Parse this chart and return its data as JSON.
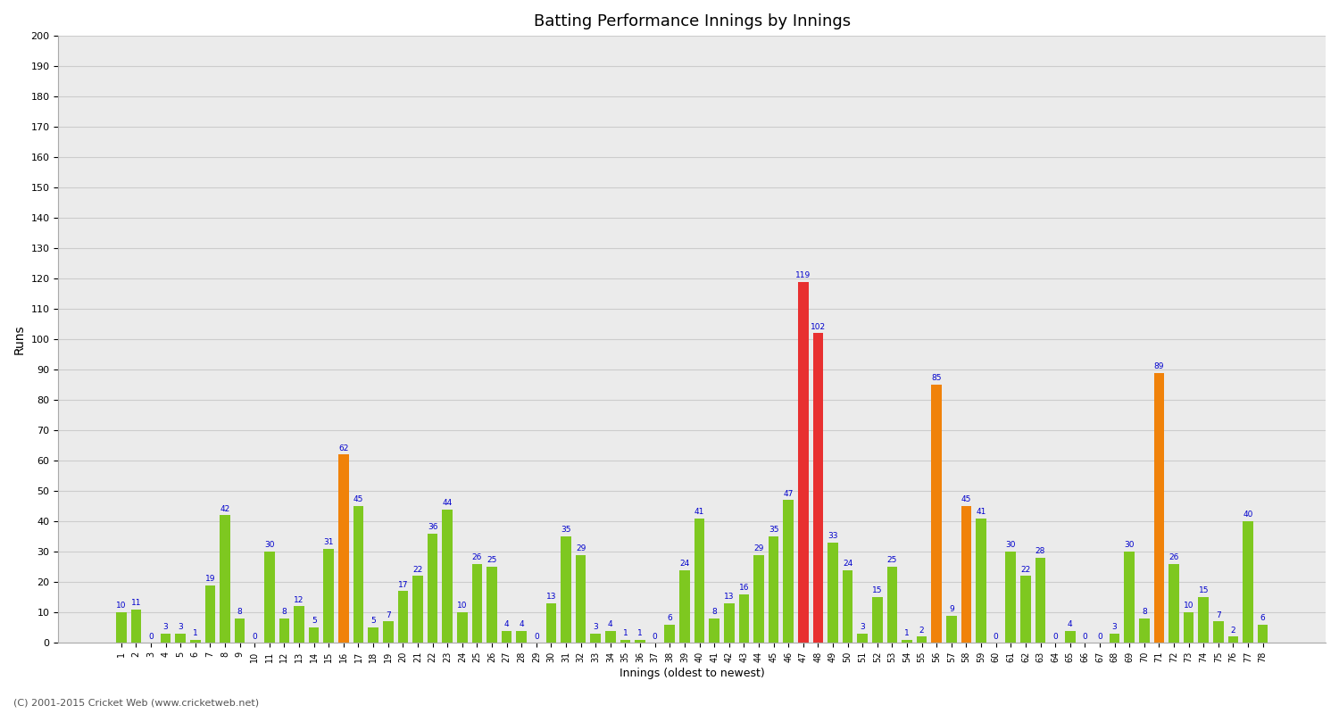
{
  "innings": [
    1,
    2,
    3,
    4,
    5,
    6,
    7,
    8,
    9,
    10,
    11,
    12,
    13,
    14,
    15,
    16,
    17,
    18,
    19,
    20,
    21,
    22,
    23,
    24,
    25,
    26,
    27,
    28,
    29,
    30,
    31,
    32,
    33,
    34,
    35,
    36,
    37,
    38,
    39,
    40,
    41,
    42,
    43,
    44,
    45,
    46,
    47,
    48,
    49,
    50,
    51,
    52,
    53,
    54,
    55,
    56,
    57,
    58,
    59,
    60,
    61,
    62,
    63,
    64,
    65,
    66,
    67,
    68,
    69,
    70,
    71,
    72,
    73,
    74,
    75,
    76,
    77,
    78
  ],
  "values": [
    10,
    11,
    0,
    3,
    3,
    1,
    19,
    42,
    8,
    0,
    30,
    8,
    12,
    5,
    31,
    62,
    45,
    5,
    7,
    17,
    22,
    36,
    44,
    10,
    26,
    25,
    4,
    4,
    0,
    13,
    35,
    29,
    3,
    4,
    1,
    1,
    0,
    6,
    24,
    41,
    8,
    13,
    16,
    29,
    35,
    47,
    119,
    102,
    33,
    24,
    3,
    15,
    25,
    1,
    2,
    85,
    9,
    45,
    41,
    0,
    30,
    22,
    28,
    0,
    4,
    0,
    0,
    3,
    30,
    8,
    89,
    26,
    10,
    15,
    7,
    2,
    40,
    6
  ],
  "colors": [
    "#7ec820",
    "#7ec820",
    "#7ec820",
    "#7ec820",
    "#7ec820",
    "#7ec820",
    "#7ec820",
    "#7ec820",
    "#7ec820",
    "#7ec820",
    "#7ec820",
    "#7ec820",
    "#7ec820",
    "#7ec820",
    "#7ec820",
    "#f0820a",
    "#7ec820",
    "#7ec820",
    "#7ec820",
    "#7ec820",
    "#7ec820",
    "#7ec820",
    "#7ec820",
    "#7ec820",
    "#7ec820",
    "#7ec820",
    "#7ec820",
    "#7ec820",
    "#7ec820",
    "#7ec820",
    "#7ec820",
    "#7ec820",
    "#7ec820",
    "#7ec820",
    "#7ec820",
    "#7ec820",
    "#7ec820",
    "#7ec820",
    "#7ec820",
    "#7ec820",
    "#7ec820",
    "#7ec820",
    "#7ec820",
    "#7ec820",
    "#7ec820",
    "#7ec820",
    "#e83030",
    "#e83030",
    "#7ec820",
    "#7ec820",
    "#7ec820",
    "#7ec820",
    "#7ec820",
    "#7ec820",
    "#7ec820",
    "#f0820a",
    "#7ec820",
    "#f0820a",
    "#7ec820",
    "#7ec820",
    "#7ec820",
    "#7ec820",
    "#7ec820",
    "#7ec820",
    "#7ec820",
    "#7ec820",
    "#7ec820",
    "#7ec820",
    "#7ec820",
    "#7ec820",
    "#f0820a",
    "#7ec820",
    "#7ec820",
    "#7ec820",
    "#7ec820",
    "#7ec820",
    "#7ec820",
    "#7ec820"
  ],
  "title": "Batting Performance Innings by Innings",
  "ylabel": "Runs",
  "xlabel": "Innings (oldest to newest)",
  "ylim": [
    0,
    200
  ],
  "yticks": [
    0,
    10,
    20,
    30,
    40,
    50,
    60,
    70,
    80,
    90,
    100,
    110,
    120,
    130,
    140,
    150,
    160,
    170,
    180,
    190,
    200
  ],
  "bg_color": "#ebebeb",
  "grid_color": "#cccccc",
  "label_color": "#0000cc",
  "label_fontsize": 6.5,
  "bar_width": 0.7,
  "footer": "(C) 2001-2015 Cricket Web (www.cricketweb.net)"
}
